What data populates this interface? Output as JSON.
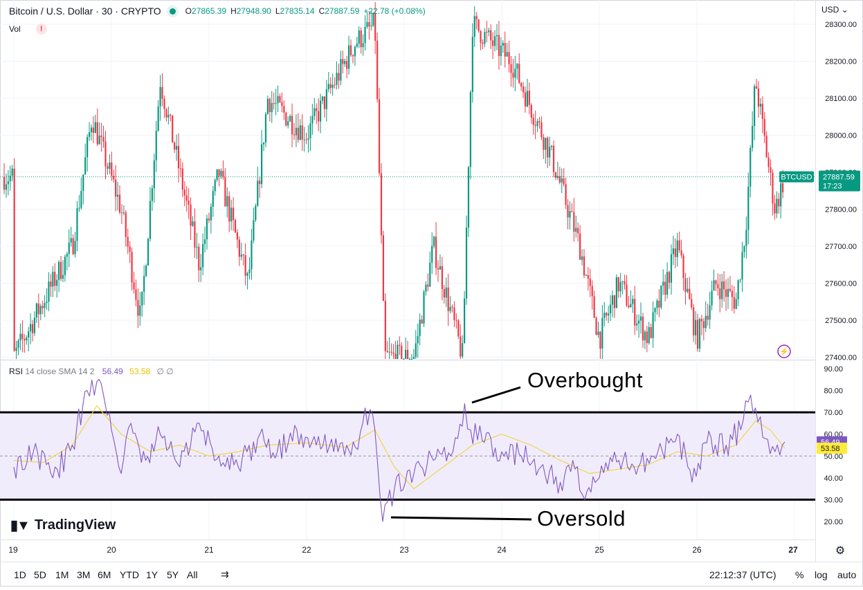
{
  "header": {
    "symbol": "Bitcoin / U.S. Dollar · 30 · CRYPTO",
    "o_label": "O",
    "o_value": "27865.39",
    "h_label": "H",
    "h_value": "27948.90",
    "l_label": "L",
    "l_value": "27835.14",
    "c_label": "C",
    "c_value": "27887.59",
    "change": "+22.78 (+0.08%)",
    "vol_label": "Vol",
    "warn_icon": "!"
  },
  "currency": "USD",
  "price_label": {
    "ticker": "BTCUSD",
    "price": "27887.59",
    "countdown": "17:23"
  },
  "rsi_legend": {
    "name": "RSI",
    "params": "14 close SMA 14 2",
    "rsi_value": "56.49",
    "sma_value": "53.58",
    "icons": "∅ ∅"
  },
  "annotations": {
    "overbought": "Overbought",
    "oversold": "Oversold"
  },
  "brand": {
    "name": "TradingView"
  },
  "toolbar": {
    "ranges": [
      "1D",
      "5D",
      "1M",
      "3M",
      "6M",
      "YTD",
      "1Y",
      "5Y",
      "All"
    ],
    "clock": "22:12:37 (UTC)",
    "percent": "%",
    "log": "log",
    "auto": "auto"
  },
  "colors": {
    "up": "#089981",
    "down": "#f23645",
    "rsi": "#7e57c2",
    "rsi_sma": "#f0d54a",
    "band": "#f1ecfb"
  },
  "chart_data": [
    {
      "type": "candlestick",
      "title": "Bitcoin / U.S. Dollar · 30 · CRYPTO",
      "x_ticks": [
        "19",
        "20",
        "21",
        "22",
        "23",
        "24",
        "25",
        "26",
        "27"
      ],
      "y_ticks": [
        "27400.00",
        "27500.00",
        "27600.00",
        "27700.00",
        "27800.00",
        "27900.00",
        "28000.00",
        "28100.00",
        "28200.00",
        "28300.00"
      ],
      "ylim": [
        27395,
        28315
      ],
      "last_price": 27887.59,
      "grid": true,
      "approx_close_path": [
        [
          "19",
          27400
        ],
        [
          "19.6",
          27700
        ],
        [
          "19.8",
          28050
        ],
        [
          "20.1",
          27800
        ],
        [
          "20.3",
          27500
        ],
        [
          "20.5",
          28150
        ],
        [
          "20.9",
          27650
        ],
        [
          "21.1",
          27900
        ],
        [
          "21.4",
          27600
        ],
        [
          "21.6",
          28100
        ],
        [
          "22.0",
          28000
        ],
        [
          "22.5",
          28250
        ],
        [
          "22.7",
          28300
        ],
        [
          "22.8",
          27400
        ],
        [
          "23.1",
          27400
        ],
        [
          "23.3",
          27700
        ],
        [
          "23.6",
          27400
        ],
        [
          "23.7",
          28300
        ],
        [
          "24.1",
          28200
        ],
        [
          "24.5",
          27950
        ],
        [
          "24.8",
          27700
        ],
        [
          "25.0",
          27450
        ],
        [
          "25.2",
          27600
        ],
        [
          "25.5",
          27450
        ],
        [
          "25.8",
          27700
        ],
        [
          "26.0",
          27450
        ],
        [
          "26.2",
          27600
        ],
        [
          "26.4",
          27550
        ],
        [
          "26.5",
          27750
        ],
        [
          "26.6",
          28150
        ],
        [
          "26.8",
          27800
        ],
        [
          "26.9",
          27887.59
        ]
      ]
    },
    {
      "type": "line",
      "title": "RSI 14 close SMA 14 2",
      "y_ticks": [
        "20.00",
        "30.00",
        "40.00",
        "50.00",
        "60.00",
        "70.00",
        "80.00",
        "90.00"
      ],
      "ylim": [
        15,
        92
      ],
      "levels": {
        "upper": 70,
        "middle": 50,
        "lower": 30
      },
      "series": [
        {
          "name": "RSI",
          "x": [
            19.0,
            19.2,
            19.4,
            19.6,
            19.75,
            19.85,
            20.0,
            20.1,
            20.2,
            20.35,
            20.5,
            20.7,
            20.9,
            21.1,
            21.3,
            21.5,
            21.7,
            21.9,
            22.1,
            22.3,
            22.5,
            22.6,
            22.7,
            22.78,
            22.9,
            23.1,
            23.3,
            23.5,
            23.62,
            23.68,
            23.8,
            24.0,
            24.2,
            24.4,
            24.6,
            24.75,
            24.85,
            25.0,
            25.2,
            25.4,
            25.6,
            25.8,
            25.95,
            26.1,
            26.3,
            26.45,
            26.55,
            26.6,
            26.7,
            26.8,
            26.9
          ],
          "values": [
            45,
            52,
            40,
            55,
            80,
            84,
            62,
            42,
            65,
            48,
            60,
            45,
            65,
            50,
            45,
            58,
            52,
            62,
            55,
            58,
            54,
            72,
            62,
            20,
            35,
            42,
            48,
            52,
            74,
            62,
            57,
            52,
            50,
            45,
            38,
            44,
            30,
            40,
            48,
            45,
            52,
            60,
            38,
            56,
            55,
            62,
            78,
            72,
            58,
            52,
            56.49
          ]
        },
        {
          "name": "SMA",
          "x": [
            19.0,
            19.3,
            19.6,
            19.85,
            20.1,
            20.4,
            20.7,
            21.0,
            21.3,
            21.6,
            22.0,
            22.4,
            22.7,
            22.9,
            23.1,
            23.4,
            23.7,
            24.0,
            24.3,
            24.6,
            24.9,
            25.2,
            25.5,
            25.8,
            26.1,
            26.4,
            26.6,
            26.75,
            26.9
          ],
          "values": [
            48,
            47,
            55,
            73,
            60,
            52,
            55,
            50,
            52,
            55,
            56,
            54,
            62,
            45,
            35,
            45,
            55,
            60,
            55,
            48,
            42,
            44,
            46,
            52,
            50,
            55,
            66,
            62,
            53.58
          ]
        }
      ]
    }
  ]
}
